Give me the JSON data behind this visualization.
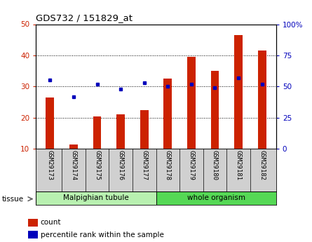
{
  "title": "GDS732 / 151829_at",
  "categories": [
    "GSM29173",
    "GSM29174",
    "GSM29175",
    "GSM29176",
    "GSM29177",
    "GSM29178",
    "GSM29179",
    "GSM29180",
    "GSM29181",
    "GSM29182"
  ],
  "count_values": [
    26.5,
    11.5,
    20.5,
    21.0,
    22.5,
    32.5,
    39.5,
    35.0,
    46.5,
    41.5
  ],
  "percentile_values": [
    55,
    42,
    52,
    48,
    53,
    50,
    52,
    49,
    57,
    52
  ],
  "left_ylim": [
    10,
    50
  ],
  "right_ylim": [
    0,
    100
  ],
  "left_yticks": [
    10,
    20,
    30,
    40,
    50
  ],
  "right_yticks": [
    0,
    25,
    50,
    75,
    100
  ],
  "right_yticklabels": [
    "0",
    "25",
    "50",
    "75",
    "100%"
  ],
  "tissue_groups": [
    {
      "label": "Malpighian tubule",
      "start": 0,
      "end": 5,
      "color": "#b8f0b0"
    },
    {
      "label": "whole organism",
      "start": 5,
      "end": 10,
      "color": "#55d855"
    }
  ],
  "bar_color": "#cc2200",
  "dot_color": "#0000bb",
  "bar_width": 0.35,
  "bg_color": "#ffffff",
  "tick_label_color_left": "#cc2200",
  "tick_label_color_right": "#0000bb",
  "xticklabel_bg": "#d0d0d0",
  "legend_items": [
    {
      "label": "count",
      "color": "#cc2200"
    },
    {
      "label": "percentile rank within the sample",
      "color": "#0000bb"
    }
  ]
}
